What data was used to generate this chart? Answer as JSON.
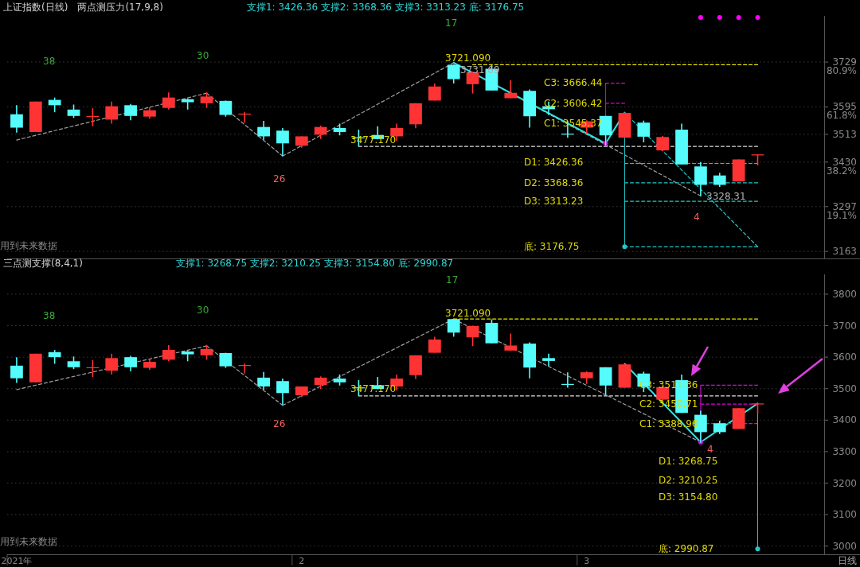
{
  "chart_data": [
    {
      "type": "candlestick",
      "title": "上证指数(日线)",
      "subtitle": "两点测压力(17,9,8)",
      "categories": [
        null,
        null,
        null,
        null,
        null,
        null,
        null,
        null,
        null,
        null,
        null,
        null,
        null,
        null,
        null,
        null,
        null,
        null,
        null,
        null,
        null,
        null,
        null,
        null,
        null,
        null,
        null,
        null,
        null,
        null,
        null,
        null,
        null,
        null,
        null,
        null,
        null,
        null,
        null,
        null,
        null,
        null,
        null
      ],
      "ylim": [
        3142,
        3867
      ],
      "yticks": [
        {
          "value": 3729,
          "label": "3729\n80.9%"
        },
        {
          "value": 3595,
          "label": "3595\n61.8%"
        },
        3513,
        {
          "value": 3430,
          "label": "3430\n38.2%"
        },
        {
          "value": 3297,
          "label": "3297\n19.1%"
        },
        3163
      ],
      "grid": "y",
      "ohlc": [
        [
          3573,
          3600,
          3518,
          3533
        ],
        [
          3520,
          3611,
          3520,
          3611
        ],
        [
          3616,
          3623,
          3579,
          3600
        ],
        [
          3587,
          3602,
          3562,
          3568
        ],
        [
          3566,
          3591,
          3537,
          3568
        ],
        [
          3557,
          3611,
          3545,
          3597
        ],
        [
          3600,
          3604,
          3555,
          3568
        ],
        [
          3566,
          3594,
          3560,
          3585
        ],
        [
          3592,
          3638,
          3587,
          3623
        ],
        [
          3618,
          3620,
          3587,
          3609
        ],
        [
          3606,
          3639,
          3592,
          3626
        ],
        [
          3613,
          3614,
          3566,
          3571
        ],
        [
          3573,
          3580,
          3548,
          3575
        ],
        [
          3535,
          3553,
          3497,
          3507
        ],
        [
          3524,
          3532,
          3448,
          3486
        ],
        [
          3479,
          3507,
          3473,
          3507
        ],
        [
          3512,
          3539,
          3499,
          3535
        ],
        [
          3532,
          3545,
          3510,
          3520
        ],
        [
          3504,
          3527,
          3477,
          3503
        ],
        [
          3511,
          3537,
          3498,
          3499
        ],
        [
          3507,
          3545,
          3494,
          3532
        ],
        [
          3543,
          3606,
          3531,
          3606
        ],
        [
          3614,
          3665,
          3614,
          3656
        ],
        [
          3721,
          3722,
          3665,
          3678
        ],
        [
          3663,
          3700,
          3635,
          3699
        ],
        [
          3709,
          3720,
          3644,
          3644
        ],
        [
          3621,
          3675,
          3621,
          3637
        ],
        [
          3643,
          3647,
          3533,
          3567
        ],
        [
          3597,
          3611,
          3571,
          3588
        ],
        [
          3515,
          3552,
          3503,
          3514
        ],
        [
          3533,
          3555,
          3515,
          3552
        ],
        [
          3568,
          3568,
          3480,
          3510
        ],
        [
          3503,
          3578,
          3503,
          3577
        ],
        [
          3548,
          3554,
          3489,
          3506
        ],
        [
          3465,
          3508,
          3463,
          3505
        ],
        [
          3527,
          3545,
          3423,
          3423
        ],
        [
          3417,
          3430,
          3328,
          3362
        ],
        [
          3390,
          3398,
          3356,
          3362
        ],
        [
          3372,
          3438,
          3372,
          3438
        ],
        [
          3450,
          3453,
          3420,
          3453
        ],
        null,
        null,
        null
      ],
      "colors": [
        "#54fcfc",
        "#ff3333",
        "#54fcfc",
        "#54fcfc",
        "#ff3333",
        "#ff3333",
        "#54fcfc",
        "#ff3333",
        "#ff3333",
        "#54fcfc",
        "#ff3333",
        "#54fcfc",
        "#ff3333",
        "#54fcfc",
        "#54fcfc",
        "#ff3333",
        "#ff3333",
        "#54fcfc",
        "#54fcfc",
        "#54fcfc",
        "#ff3333",
        "#ff3333",
        "#ff3333",
        "#54fcfc",
        "#ff3333",
        "#54fcfc",
        "#ff3333",
        "#54fcfc",
        "#54fcfc",
        "#54fcfc",
        "#ff3333",
        "#54fcfc",
        "#ff3333",
        "#54fcfc",
        "#ff3333",
        "#54fcfc",
        "#54fcfc",
        "#54fcfc",
        "#ff3333",
        "#ff3333",
        null,
        null,
        null
      ],
      "series": [
        {
          "type": "line",
          "color": "#a0a0a0",
          "line_style": "dashed",
          "values": [
            3496,
            null,
            null,
            null,
            null,
            null,
            null,
            null,
            null,
            null,
            3636,
            null,
            null,
            null,
            3448,
            null,
            null,
            null,
            null,
            null,
            null,
            null,
            null,
            3727,
            null,
            null,
            null,
            null,
            null,
            null,
            null,
            null,
            null,
            null,
            null,
            null,
            3329,
            null,
            null,
            null,
            null,
            null,
            null
          ]
        },
        {
          "type": "line",
          "color": "#33e0e0",
          "line_style": "solid",
          "values": [
            null,
            null,
            null,
            null,
            null,
            null,
            null,
            null,
            null,
            null,
            null,
            null,
            null,
            null,
            null,
            null,
            null,
            null,
            null,
            null,
            null,
            null,
            null,
            3727,
            null,
            null,
            null,
            null,
            null,
            null,
            null,
            3486,
            3578,
            null,
            null,
            null,
            null,
            null,
            null,
            null,
            null,
            null,
            null
          ]
        },
        {
          "type": "line",
          "color": "#e6e600",
          "line_style": "dashed",
          "values": [
            null,
            null,
            null,
            null,
            null,
            null,
            null,
            null,
            null,
            null,
            null,
            null,
            null,
            null,
            null,
            null,
            null,
            null,
            null,
            null,
            null,
            null,
            null,
            null,
            3721,
            null,
            null,
            null,
            null,
            null,
            null,
            null,
            null,
            null,
            null,
            null,
            null,
            null,
            null,
            3721,
            null,
            null,
            null
          ]
        },
        {
          "type": "line",
          "color": "#e0e0e0",
          "line_style": "dashed",
          "values": [
            null,
            null,
            null,
            null,
            null,
            null,
            null,
            null,
            null,
            null,
            null,
            null,
            null,
            null,
            null,
            null,
            null,
            null,
            3477,
            null,
            null,
            null,
            null,
            null,
            null,
            null,
            null,
            null,
            null,
            null,
            null,
            null,
            null,
            null,
            null,
            null,
            null,
            null,
            null,
            3477,
            null,
            null,
            null
          ]
        },
        {
          "type": "scatter",
          "color": "#e000e0",
          "marker": "circle",
          "values": [
            null,
            null,
            null,
            null,
            null,
            null,
            null,
            null,
            null,
            null,
            null,
            null,
            null,
            null,
            null,
            null,
            null,
            null,
            null,
            null,
            null,
            null,
            null,
            null,
            null,
            null,
            null,
            null,
            null,
            null,
            null,
            3486,
            null,
            null,
            null,
            null,
            null,
            null,
            null,
            null,
            null,
            null,
            null
          ],
          "errors": [
            null,
            null,
            null,
            null,
            null,
            null,
            null,
            null,
            null,
            null,
            null,
            null,
            null,
            null,
            null,
            null,
            null,
            null,
            null,
            null,
            null,
            null,
            null,
            null,
            null,
            null,
            null,
            null,
            null,
            null,
            null,
            [
              3486,
              3666
            ],
            null,
            null,
            null,
            null,
            null,
            null,
            null,
            null,
            null,
            null,
            null
          ]
        },
        {
          "type": "line",
          "color": "#e000e0",
          "line_style": "dashed",
          "values": [
            null,
            null,
            null,
            null,
            null,
            null,
            null,
            null,
            null,
            null,
            null,
            null,
            null,
            null,
            null,
            null,
            null,
            null,
            null,
            null,
            null,
            null,
            null,
            null,
            null,
            null,
            null,
            null,
            null,
            null,
            null,
            3666,
            3666,
            null,
            null,
            null,
            null,
            null,
            null,
            null,
            null,
            null,
            null
          ]
        },
        {
          "type": "line",
          "color": "#e000e0",
          "line_style": "dashed",
          "values": [
            null,
            null,
            null,
            null,
            null,
            null,
            null,
            null,
            null,
            null,
            null,
            null,
            null,
            null,
            null,
            null,
            null,
            null,
            null,
            null,
            null,
            null,
            null,
            null,
            null,
            null,
            null,
            null,
            null,
            null,
            null,
            3606,
            3606,
            null,
            null,
            null,
            null,
            null,
            null,
            null,
            null,
            null,
            null
          ]
        },
        {
          "type": "scatter",
          "color": "#20c8c8",
          "marker": "circle",
          "values": [
            null,
            null,
            null,
            null,
            null,
            null,
            null,
            null,
            null,
            null,
            null,
            null,
            null,
            null,
            null,
            null,
            null,
            null,
            null,
            null,
            null,
            null,
            null,
            null,
            null,
            null,
            null,
            null,
            null,
            null,
            null,
            null,
            3177,
            null,
            null,
            null,
            null,
            null,
            null,
            null,
            null,
            null,
            null
          ],
          "errors": [
            null,
            null,
            null,
            null,
            null,
            null,
            null,
            null,
            null,
            null,
            null,
            null,
            null,
            null,
            null,
            null,
            null,
            null,
            null,
            null,
            null,
            null,
            null,
            null,
            null,
            null,
            null,
            null,
            null,
            null,
            null,
            null,
            [
              3177,
              3578
            ],
            null,
            null,
            null,
            null,
            null,
            null,
            null,
            null,
            null,
            null
          ]
        },
        {
          "type": "line",
          "color": "#20c8c8",
          "line_style": "dashed",
          "values": [
            null,
            null,
            null,
            null,
            null,
            null,
            null,
            null,
            null,
            null,
            null,
            null,
            null,
            null,
            null,
            null,
            null,
            null,
            null,
            null,
            null,
            null,
            null,
            null,
            null,
            null,
            null,
            null,
            null,
            null,
            null,
            null,
            3426,
            null,
            null,
            null,
            null,
            null,
            null,
            3426,
            null,
            null,
            null
          ]
        },
        {
          "type": "line",
          "color": "#20c8c8",
          "line_style": "dashed",
          "values": [
            null,
            null,
            null,
            null,
            null,
            null,
            null,
            null,
            null,
            null,
            null,
            null,
            null,
            null,
            null,
            null,
            null,
            null,
            null,
            null,
            null,
            null,
            null,
            null,
            null,
            null,
            null,
            null,
            null,
            null,
            null,
            null,
            3368,
            null,
            null,
            null,
            null,
            null,
            null,
            3368,
            null,
            null,
            null
          ]
        },
        {
          "type": "line",
          "color": "#20c8c8",
          "line_style": "dashed",
          "values": [
            null,
            null,
            null,
            null,
            null,
            null,
            null,
            null,
            null,
            null,
            null,
            null,
            null,
            null,
            null,
            null,
            null,
            null,
            null,
            null,
            null,
            null,
            null,
            null,
            null,
            null,
            null,
            null,
            null,
            null,
            null,
            null,
            3313,
            null,
            null,
            null,
            null,
            null,
            null,
            3313,
            null,
            null,
            null
          ]
        },
        {
          "type": "line",
          "color": "#20c8c8",
          "line_style": "dashed",
          "values": [
            null,
            null,
            null,
            null,
            null,
            null,
            null,
            null,
            null,
            null,
            null,
            null,
            null,
            null,
            null,
            null,
            null,
            null,
            null,
            null,
            null,
            null,
            null,
            null,
            null,
            null,
            null,
            null,
            null,
            null,
            null,
            null,
            3177,
            null,
            null,
            null,
            null,
            null,
            null,
            3177,
            null,
            null,
            null
          ]
        },
        {
          "type": "line",
          "color": "#20c8c8",
          "line_style": "dashed",
          "values": [
            null,
            null,
            null,
            null,
            null,
            null,
            null,
            null,
            null,
            null,
            null,
            null,
            null,
            null,
            null,
            null,
            null,
            null,
            null,
            null,
            null,
            null,
            null,
            null,
            null,
            null,
            null,
            null,
            null,
            null,
            null,
            null,
            3578,
            null,
            null,
            null,
            null,
            null,
            null,
            3177,
            null,
            null,
            null
          ]
        },
        {
          "type": "scatter",
          "color": "#ff00ff",
          "marker": "circle",
          "values": [
            null,
            null,
            null,
            null,
            null,
            null,
            null,
            null,
            null,
            null,
            null,
            null,
            null,
            null,
            null,
            null,
            null,
            null,
            null,
            null,
            null,
            null,
            null,
            null,
            null,
            null,
            null,
            null,
            null,
            null,
            null,
            null,
            null,
            null,
            null,
            null,
            3862,
            3862,
            3862,
            3862,
            null,
            null,
            null
          ]
        }
      ],
      "annotations": [
        "支撑1: 3426.36 支撑2: 3368.36 支撑3: 3313.23 底: 3176.75",
        "用到未来数据",
        "38",
        "30",
        "17",
        "26",
        "4",
        "3721.090",
        "3731.69",
        "3477.170",
        "3328.31",
        "C3: 3666.44",
        "C2: 3606.42",
        "C1: 3545.37",
        "D1: 3426.36",
        "D2: 3368.36",
        "D3: 3313.23",
        "底: 3176.75"
      ]
    },
    {
      "type": "candlestick",
      "title": "三点测支撑(8,4,1)",
      "categories": [
        "2021年",
        null,
        null,
        null,
        null,
        null,
        null,
        null,
        null,
        null,
        null,
        null,
        null,
        null,
        null,
        "2",
        null,
        null,
        null,
        null,
        null,
        null,
        null,
        null,
        null,
        null,
        null,
        null,
        null,
        null,
        "3",
        null,
        null,
        null,
        null,
        null,
        null,
        null,
        null,
        null,
        null,
        null,
        null
      ],
      "ylim": [
        2974,
        3863
      ],
      "yticks": [
        3000,
        3100,
        3200,
        3300,
        3400,
        3500,
        3600,
        3700,
        3800
      ],
      "grid": "y",
      "ohlc": [
        [
          3573,
          3600,
          3518,
          3533
        ],
        [
          3520,
          3611,
          3520,
          3611
        ],
        [
          3616,
          3623,
          3579,
          3600
        ],
        [
          3587,
          3602,
          3562,
          3568
        ],
        [
          3566,
          3591,
          3537,
          3568
        ],
        [
          3557,
          3611,
          3545,
          3597
        ],
        [
          3600,
          3604,
          3555,
          3568
        ],
        [
          3566,
          3594,
          3560,
          3585
        ],
        [
          3592,
          3638,
          3587,
          3623
        ],
        [
          3618,
          3620,
          3587,
          3609
        ],
        [
          3606,
          3639,
          3592,
          3626
        ],
        [
          3613,
          3614,
          3566,
          3571
        ],
        [
          3573,
          3580,
          3548,
          3575
        ],
        [
          3535,
          3553,
          3497,
          3507
        ],
        [
          3524,
          3532,
          3448,
          3486
        ],
        [
          3479,
          3507,
          3473,
          3507
        ],
        [
          3512,
          3539,
          3499,
          3535
        ],
        [
          3532,
          3545,
          3510,
          3520
        ],
        [
          3504,
          3527,
          3477,
          3503
        ],
        [
          3511,
          3537,
          3498,
          3499
        ],
        [
          3507,
          3545,
          3494,
          3532
        ],
        [
          3543,
          3606,
          3531,
          3606
        ],
        [
          3614,
          3665,
          3614,
          3656
        ],
        [
          3721,
          3722,
          3665,
          3678
        ],
        [
          3663,
          3700,
          3635,
          3699
        ],
        [
          3709,
          3720,
          3644,
          3644
        ],
        [
          3621,
          3675,
          3621,
          3637
        ],
        [
          3643,
          3647,
          3533,
          3567
        ],
        [
          3597,
          3611,
          3571,
          3588
        ],
        [
          3515,
          3552,
          3503,
          3514
        ],
        [
          3533,
          3555,
          3515,
          3552
        ],
        [
          3568,
          3568,
          3480,
          3510
        ],
        [
          3503,
          3578,
          3503,
          3577
        ],
        [
          3548,
          3554,
          3489,
          3506
        ],
        [
          3465,
          3508,
          3463,
          3505
        ],
        [
          3527,
          3545,
          3423,
          3423
        ],
        [
          3417,
          3430,
          3328,
          3362
        ],
        [
          3390,
          3398,
          3356,
          3362
        ],
        [
          3372,
          3438,
          3372,
          3438
        ],
        [
          3450,
          3453,
          3420,
          3453
        ],
        null,
        null,
        null
      ],
      "colors": [
        "#54fcfc",
        "#ff3333",
        "#54fcfc",
        "#54fcfc",
        "#ff3333",
        "#ff3333",
        "#54fcfc",
        "#ff3333",
        "#ff3333",
        "#54fcfc",
        "#ff3333",
        "#54fcfc",
        "#ff3333",
        "#54fcfc",
        "#54fcfc",
        "#ff3333",
        "#ff3333",
        "#54fcfc",
        "#54fcfc",
        "#54fcfc",
        "#ff3333",
        "#ff3333",
        "#ff3333",
        "#54fcfc",
        "#ff3333",
        "#54fcfc",
        "#ff3333",
        "#54fcfc",
        "#54fcfc",
        "#54fcfc",
        "#ff3333",
        "#54fcfc",
        "#ff3333",
        "#54fcfc",
        "#ff3333",
        "#54fcfc",
        "#54fcfc",
        "#54fcfc",
        "#ff3333",
        "#ff3333",
        null,
        null,
        null
      ],
      "series": [
        {
          "type": "line",
          "color": "#a0a0a0",
          "line_style": "dashed",
          "values": [
            3497,
            null,
            null,
            null,
            null,
            null,
            null,
            null,
            null,
            null,
            3636,
            null,
            null,
            null,
            3447,
            null,
            null,
            null,
            null,
            null,
            null,
            null,
            null,
            3721,
            null,
            null,
            null,
            null,
            null,
            null,
            null,
            null,
            null,
            null,
            null,
            null,
            3330,
            null,
            null,
            null,
            null,
            null,
            null
          ]
        },
        {
          "type": "line",
          "color": "#33e0e0",
          "line_style": "solid",
          "values": [
            null,
            null,
            null,
            null,
            null,
            null,
            null,
            null,
            null,
            null,
            null,
            null,
            null,
            null,
            null,
            null,
            null,
            null,
            null,
            null,
            null,
            null,
            null,
            null,
            null,
            null,
            null,
            null,
            null,
            null,
            null,
            null,
            3579,
            null,
            null,
            null,
            3330,
            null,
            null,
            3453,
            null,
            null,
            null
          ]
        },
        {
          "type": "line",
          "color": "#e6e600",
          "line_style": "dashed",
          "values": [
            null,
            null,
            null,
            null,
            null,
            null,
            null,
            null,
            null,
            null,
            null,
            null,
            null,
            null,
            null,
            null,
            null,
            null,
            null,
            null,
            null,
            null,
            null,
            3721,
            null,
            null,
            null,
            null,
            null,
            null,
            null,
            null,
            null,
            null,
            null,
            null,
            null,
            null,
            null,
            3721,
            null,
            null,
            null
          ]
        },
        {
          "type": "line",
          "color": "#e0e0e0",
          "line_style": "dashed",
          "values": [
            null,
            null,
            null,
            null,
            null,
            null,
            null,
            null,
            null,
            null,
            null,
            null,
            null,
            null,
            null,
            null,
            null,
            null,
            3477,
            null,
            null,
            null,
            null,
            null,
            null,
            null,
            null,
            null,
            null,
            null,
            null,
            null,
            null,
            null,
            null,
            null,
            null,
            null,
            null,
            3477,
            null,
            null,
            null
          ]
        },
        {
          "type": "scatter",
          "color": "#e000e0",
          "marker": "circle",
          "values": [
            null,
            null,
            null,
            null,
            null,
            null,
            null,
            null,
            null,
            null,
            null,
            null,
            null,
            null,
            null,
            null,
            null,
            null,
            null,
            null,
            null,
            null,
            null,
            null,
            null,
            null,
            null,
            null,
            null,
            null,
            null,
            null,
            null,
            null,
            null,
            null,
            3330,
            null,
            null,
            null,
            null,
            null,
            null
          ],
          "errors": [
            null,
            null,
            null,
            null,
            null,
            null,
            null,
            null,
            null,
            null,
            null,
            null,
            null,
            null,
            null,
            null,
            null,
            null,
            null,
            null,
            null,
            null,
            null,
            null,
            null,
            null,
            null,
            null,
            null,
            null,
            null,
            null,
            null,
            null,
            null,
            null,
            [
              3330,
              3511
            ],
            null,
            null,
            null,
            null,
            null,
            null
          ]
        },
        {
          "type": "line",
          "color": "#e000e0",
          "line_style": "dashed",
          "values": [
            null,
            null,
            null,
            null,
            null,
            null,
            null,
            null,
            null,
            null,
            null,
            null,
            null,
            null,
            null,
            null,
            null,
            null,
            null,
            null,
            null,
            null,
            null,
            null,
            null,
            null,
            null,
            null,
            null,
            null,
            null,
            null,
            null,
            null,
            null,
            null,
            3511,
            null,
            null,
            3511,
            null,
            null,
            null
          ]
        },
        {
          "type": "line",
          "color": "#e000e0",
          "line_style": "dashed",
          "values": [
            null,
            null,
            null,
            null,
            null,
            null,
            null,
            null,
            null,
            null,
            null,
            null,
            null,
            null,
            null,
            null,
            null,
            null,
            null,
            null,
            null,
            null,
            null,
            null,
            null,
            null,
            null,
            null,
            null,
            null,
            null,
            null,
            null,
            null,
            null,
            null,
            3451,
            null,
            null,
            3451,
            null,
            null,
            null
          ]
        },
        {
          "type": "line",
          "color": "#e000e0",
          "line_style": "dashed",
          "values": [
            null,
            null,
            null,
            null,
            null,
            null,
            null,
            null,
            null,
            null,
            null,
            null,
            null,
            null,
            null,
            null,
            null,
            null,
            null,
            null,
            null,
            null,
            null,
            null,
            null,
            null,
            null,
            null,
            null,
            null,
            null,
            null,
            null,
            null,
            null,
            null,
            3389,
            null,
            null,
            3389,
            null,
            null,
            null
          ]
        },
        {
          "type": "scatter",
          "color": "#20c8c8",
          "marker": "circle",
          "values": [
            null,
            null,
            null,
            null,
            null,
            null,
            null,
            null,
            null,
            null,
            null,
            null,
            null,
            null,
            null,
            null,
            null,
            null,
            null,
            null,
            null,
            null,
            null,
            null,
            null,
            null,
            null,
            null,
            null,
            null,
            null,
            null,
            null,
            null,
            null,
            null,
            null,
            null,
            null,
            2991,
            null,
            null,
            null
          ],
          "errors": [
            null,
            null,
            null,
            null,
            null,
            null,
            null,
            null,
            null,
            null,
            null,
            null,
            null,
            null,
            null,
            null,
            null,
            null,
            null,
            null,
            null,
            null,
            null,
            null,
            null,
            null,
            null,
            null,
            null,
            null,
            null,
            null,
            null,
            null,
            null,
            null,
            null,
            null,
            null,
            [
              2991,
              3453
            ],
            null,
            null,
            null
          ]
        }
      ],
      "annotations": [
        "支撑1: 3268.75 支撑2: 3210.25 支撑3: 3154.80 底: 2990.87",
        "用到未来数据",
        "日线",
        "38",
        "30",
        "17",
        "26",
        "4",
        "3721.090",
        "3477.170",
        "C3: 3511.36",
        "C2: 3450.71",
        "C1: 3388.96",
        "D1: 3268.75",
        "D2: 3210.25",
        "D3: 3154.80",
        "底: 2990.87"
      ]
    }
  ]
}
